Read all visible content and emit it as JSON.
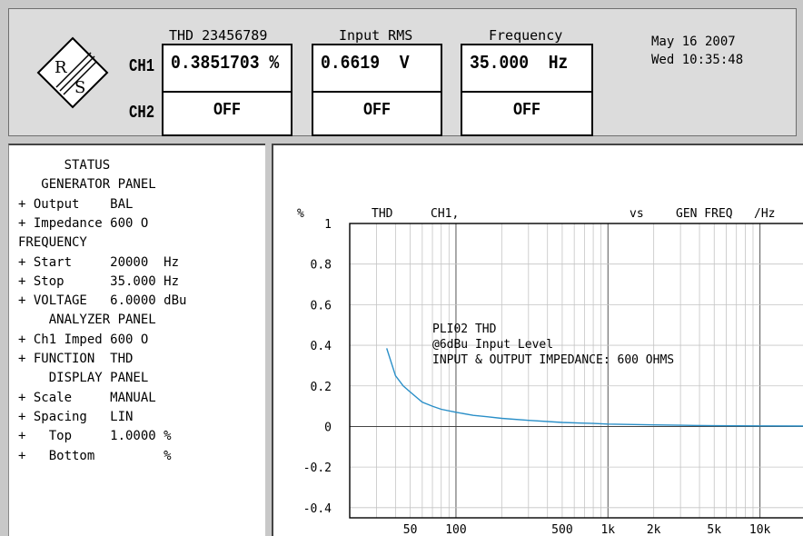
{
  "header": {
    "channels": [
      "CH1",
      "CH2"
    ],
    "metrics": [
      {
        "title": "THD 23456789",
        "ch1_value": "0.3851703 %",
        "ch2_value": "OFF"
      },
      {
        "title": "Input RMS",
        "ch1_value": "0.6619  V",
        "ch2_value": "OFF"
      },
      {
        "title": "Frequency",
        "ch1_value": "35.000  Hz",
        "ch2_value": "OFF"
      }
    ],
    "date": "May 16 2007",
    "time": "Wed 10:35:48"
  },
  "status": {
    "lines": [
      "      STATUS",
      "   GENERATOR PANEL",
      "+ Output    BAL",
      "+ Impedance 600 O",
      "FREQUENCY",
      "+ Start     20000  Hz",
      "+ Stop      35.000 Hz",
      "+ VOLTAGE   6.0000 dBu",
      "    ANALYZER PANEL",
      "+ Ch1 Imped 600 O",
      "+ FUNCTION  THD",
      "    DISPLAY PANEL",
      "+ Scale     MANUAL",
      "+ Spacing   LIN",
      "+   Top     1.0000 %",
      "+   Bottom         %"
    ]
  },
  "chart_data": {
    "type": "line",
    "header_labels": [
      "%",
      "THD",
      "CH1,",
      "vs",
      "GEN FREQ",
      "/Hz"
    ],
    "y_ticks": [
      1,
      0.8,
      0.6,
      0.4,
      0.2,
      0,
      -0.2,
      -0.4
    ],
    "y_tick_labels": [
      "1",
      "0.8",
      "0.6",
      "0.4",
      "0.2",
      "0",
      "-0.2",
      "-0.4"
    ],
    "x_tick_labels": [
      {
        "label": "50",
        "value": 50
      },
      {
        "label": "100",
        "value": 100
      },
      {
        "label": "500",
        "value": 500
      },
      {
        "label": "1k",
        "value": 1000
      },
      {
        "label": "2k",
        "value": 2000
      },
      {
        "label": "5k",
        "value": 5000
      },
      {
        "label": "10k",
        "value": 10000
      }
    ],
    "xlim": [
      20,
      20000
    ],
    "ylim": [
      -0.45,
      1
    ],
    "x_scale": "log",
    "grid": true,
    "annotations": [
      "PLI02 THD",
      "@6dBu Input Level",
      "INPUT & OUTPUT IMPEDANCE: 600 OHMS"
    ],
    "series": [
      {
        "color": "#2a8fc8",
        "x": [
          35,
          40,
          45,
          50,
          60,
          70,
          80,
          100,
          130,
          160,
          200,
          300,
          500,
          800,
          1000,
          2000,
          3000,
          5000,
          10000,
          20000
        ],
        "y": [
          0.385,
          0.25,
          0.2,
          0.17,
          0.12,
          0.1,
          0.085,
          0.07,
          0.055,
          0.048,
          0.04,
          0.03,
          0.02,
          0.015,
          0.012,
          0.008,
          0.006,
          0.004,
          0.003,
          0.002
        ]
      }
    ]
  }
}
